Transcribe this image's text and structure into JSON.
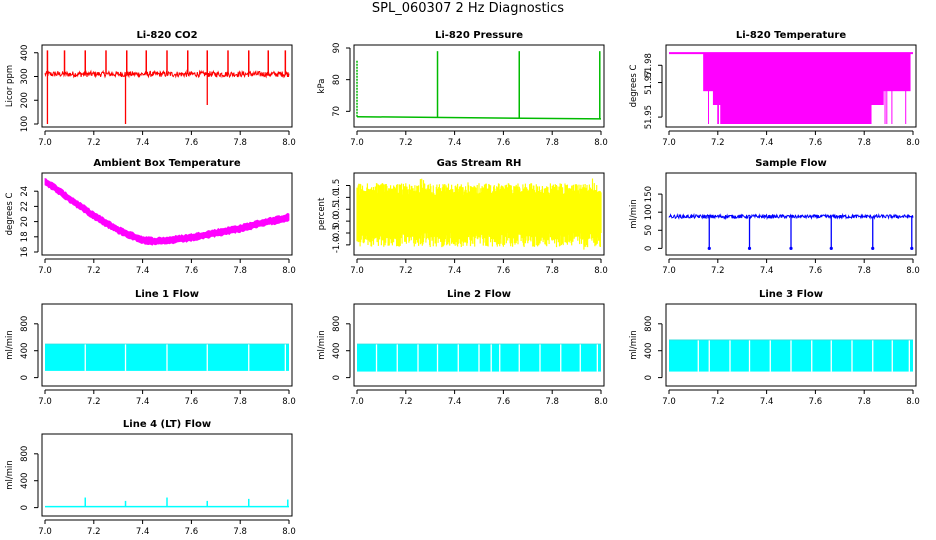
{
  "figure_title": "SPL_060307  2 Hz Diagnostics",
  "chart_data": [
    {
      "type": "line",
      "title": "Li-820 CO2",
      "ylabel": "Licor ppm",
      "color": "#ff0000",
      "xlim": [
        7.0,
        8.0
      ],
      "ylim": [
        100,
        420
      ],
      "xticks": [
        "7.0",
        "7.2",
        "7.4",
        "7.6",
        "7.8",
        "8.0"
      ],
      "yticks": [
        100,
        200,
        300,
        400
      ],
      "series": [
        {
          "baseline": 310,
          "noise": 12,
          "x": [
            7.0,
            8.0
          ],
          "spikes_up": [
            7.01,
            7.08,
            7.165,
            7.25,
            7.335,
            7.415,
            7.5,
            7.585,
            7.665,
            7.75,
            7.835,
            7.915,
            7.985
          ],
          "spike_up_value": 410,
          "spikes_down": [
            7.01,
            7.33,
            7.665
          ],
          "spike_down_values": [
            100,
            100,
            180
          ]
        }
      ]
    },
    {
      "type": "line",
      "title": "Li-820 Pressure",
      "ylabel": "kPa",
      "color": "#00bb00",
      "xlim": [
        7.0,
        8.0
      ],
      "ylim": [
        66,
        90
      ],
      "xticks": [
        "7.0",
        "7.2",
        "7.4",
        "7.6",
        "7.8",
        "8.0"
      ],
      "yticks": [
        70,
        80,
        90
      ],
      "series": [
        {
          "x": [
            7.0,
            8.0
          ],
          "y": [
            68.3,
            67.6
          ],
          "spikes_up": [
            7.0,
            7.33,
            7.665,
            7.995
          ],
          "spike_up_values": [
            86,
            89,
            89,
            89
          ]
        }
      ]
    },
    {
      "type": "area",
      "title": "Li-820 Temperature",
      "ylabel": "degrees C",
      "color": "#ff00ff",
      "xlim": [
        7.0,
        8.0
      ],
      "ylim": [
        51.946,
        51.99
      ],
      "xticks": [
        "7.0",
        "7.2",
        "7.4",
        "7.6",
        "7.8",
        "8.0"
      ],
      "yticks": [
        51.95,
        51.97,
        51.98
      ],
      "series": [
        {
          "top_value": 51.987,
          "segments": [
            {
              "x0": 7.14,
              "x1": 7.99,
              "low": 51.965
            },
            {
              "x0": 7.18,
              "x1": 7.88,
              "low": 51.957
            },
            {
              "x0": 7.21,
              "x1": 7.83,
              "low": 51.946
            }
          ]
        }
      ]
    },
    {
      "type": "line",
      "title": "Ambient Box Temperature",
      "ylabel": "degrees C",
      "color": "#ff00ff",
      "xlim": [
        7.0,
        8.0
      ],
      "ylim": [
        16,
        26
      ],
      "xticks": [
        "7.0",
        "7.2",
        "7.4",
        "7.6",
        "7.8",
        "8.0"
      ],
      "yticks": [
        16,
        18,
        20,
        22,
        24
      ],
      "series": [
        {
          "x": [
            7.0,
            7.05,
            7.1,
            7.15,
            7.2,
            7.25,
            7.3,
            7.35,
            7.4,
            7.45,
            7.5,
            7.55,
            7.6,
            7.65,
            7.7,
            7.75,
            7.8,
            7.85,
            7.9,
            7.95,
            8.0
          ],
          "y": [
            25.3,
            24.2,
            23.0,
            21.9,
            20.8,
            19.8,
            18.9,
            18.2,
            17.6,
            17.4,
            17.5,
            17.7,
            17.9,
            18.2,
            18.5,
            18.8,
            19.1,
            19.5,
            19.9,
            20.2,
            20.6
          ],
          "noise": 1.1
        }
      ]
    },
    {
      "type": "area",
      "title": "Gas Stream RH",
      "ylabel": "percent",
      "color": "#ffff00",
      "xlim": [
        7.0,
        8.0
      ],
      "ylim": [
        -1.3,
        1.9
      ],
      "xticks": [
        "7.0",
        "7.2",
        "7.4",
        "7.6",
        "7.8",
        "8.0"
      ],
      "yticks": [
        -1.0,
        -0.5,
        0.0,
        0.5,
        1.0,
        1.5
      ],
      "series": [
        {
          "x": [
            7.0,
            8.0
          ],
          "upper": 1.6,
          "lower": -0.5,
          "min_spike": -1.2
        }
      ]
    },
    {
      "type": "line",
      "title": "Sample Flow",
      "ylabel": "ml/min",
      "color": "#0000ff",
      "xlim": [
        7.0,
        8.0
      ],
      "ylim": [
        -10,
        200
      ],
      "xticks": [
        "7.0",
        "7.2",
        "7.4",
        "7.6",
        "7.8",
        "8.0"
      ],
      "yticks": [
        0,
        50,
        100,
        150
      ],
      "series": [
        {
          "baseline": 88,
          "noise": 5,
          "x": [
            7.0,
            8.0
          ],
          "spikes_down": [
            7.165,
            7.33,
            7.5,
            7.665,
            7.835,
            7.995
          ],
          "spike_down_value": 0
        }
      ]
    },
    {
      "type": "area",
      "title": "Line 1 Flow",
      "ylabel": "ml/min",
      "color": "#00ffff",
      "xlim": [
        7.0,
        8.0
      ],
      "ylim": [
        -80,
        1050
      ],
      "xticks": [
        "7.0",
        "7.2",
        "7.4",
        "7.6",
        "7.8",
        "8.0"
      ],
      "yticks": [
        0,
        400,
        800
      ],
      "series": [
        {
          "x": [
            7.0,
            8.0
          ],
          "upper": 500,
          "lower": 100,
          "gaps": [
            7.165,
            7.33,
            7.5,
            7.665,
            7.835,
            7.985
          ]
        }
      ]
    },
    {
      "type": "area",
      "title": "Line 2 Flow",
      "ylabel": "ml/min",
      "color": "#00ffff",
      "xlim": [
        7.0,
        8.0
      ],
      "ylim": [
        -80,
        1050
      ],
      "xticks": [
        "7.0",
        "7.2",
        "7.4",
        "7.6",
        "7.8",
        "8.0"
      ],
      "yticks": [
        0,
        400,
        800
      ],
      "series": [
        {
          "x": [
            7.0,
            8.0
          ],
          "upper": 500,
          "lower": 90,
          "gaps": [
            7.08,
            7.165,
            7.25,
            7.33,
            7.415,
            7.5,
            7.55,
            7.585,
            7.665,
            7.75,
            7.835,
            7.915,
            7.985
          ]
        }
      ]
    },
    {
      "type": "area",
      "title": "Line 3 Flow",
      "ylabel": "ml/min",
      "color": "#00ffff",
      "xlim": [
        7.0,
        8.0
      ],
      "ylim": [
        -80,
        1050
      ],
      "xticks": [
        "7.0",
        "7.2",
        "7.4",
        "7.6",
        "7.8",
        "8.0"
      ],
      "yticks": [
        0,
        400,
        800
      ],
      "series": [
        {
          "x": [
            7.0,
            8.0
          ],
          "upper": 560,
          "lower": 90,
          "gaps": [
            7.12,
            7.165,
            7.25,
            7.33,
            7.415,
            7.5,
            7.585,
            7.665,
            7.75,
            7.835,
            7.915,
            7.985
          ]
        }
      ]
    },
    {
      "type": "line",
      "title": "Line 4 (LT) Flow",
      "ylabel": "ml/min",
      "color": "#00ffff",
      "xlim": [
        7.0,
        8.0
      ],
      "ylim": [
        -80,
        1050
      ],
      "xticks": [
        "7.0",
        "7.2",
        "7.4",
        "7.6",
        "7.8",
        "8.0"
      ],
      "yticks": [
        0,
        400,
        800
      ],
      "series": [
        {
          "baseline": 15,
          "x": [
            7.0,
            8.0
          ],
          "spikes_up": [
            7.165,
            7.33,
            7.5,
            7.665,
            7.835,
            7.995
          ],
          "spike_up_values": [
            150,
            100,
            150,
            100,
            130,
            120
          ]
        }
      ]
    }
  ]
}
